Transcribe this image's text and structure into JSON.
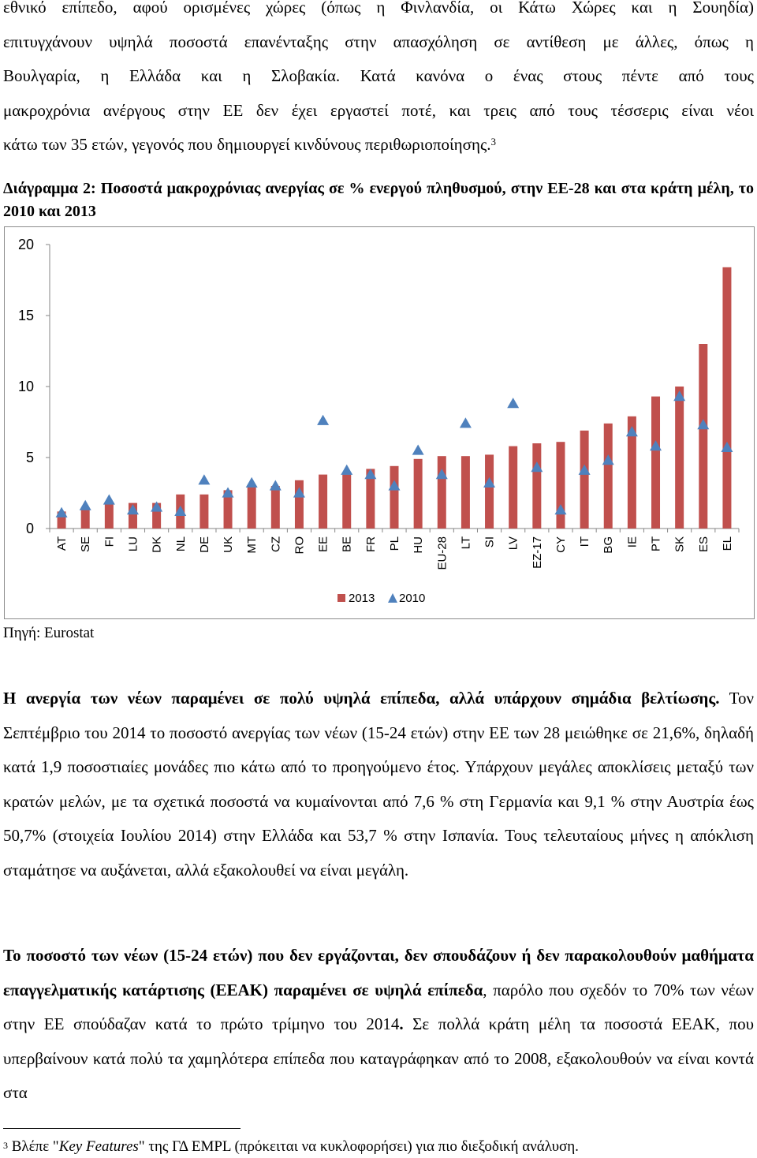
{
  "intro": {
    "line1": "εθνικό επίπεδο, αφού ορισμένες χώρες (όπως η Φινλανδία, οι Κάτω Χώρες και η Σουηδία)",
    "line2": "επιτυγχάνουν υψηλά ποσοστά επανένταξης στην απασχόληση σε αντίθεση με άλλες, όπως η",
    "line3": "Βουλγαρία, η Ελλάδα και η Σλοβακία. Κατά κανόνα ο ένας στους πέντε από τους",
    "line4": "μακροχρόνια ανέργους στην ΕΕ δεν έχει εργαστεί ποτέ, και τρεις από τους τέσσερις είναι νέοι",
    "line5": "κάτω των 35 ετών, γεγονός που δημιουργεί κινδύνους περιθωριοποίησης.",
    "footnote_ref": "3"
  },
  "caption": "Διάγραμμα 2: Ποσοστά μακροχρόνιας ανεργίας σε % ενεργού πληθυσμού, στην ΕΕ-28 και στα κράτη μέλη, το 2010 και 2013",
  "chart_data": {
    "type": "bar",
    "categories": [
      "AT",
      "SE",
      "FI",
      "LU",
      "DK",
      "NL",
      "DE",
      "UK",
      "MT",
      "CZ",
      "RO",
      "EE",
      "BE",
      "FR",
      "PL",
      "HU",
      "EU-28",
      "LT",
      "SI",
      "LV",
      "EZ-17",
      "CY",
      "IT",
      "BG",
      "IE",
      "PT",
      "SK",
      "ES",
      "EL"
    ],
    "series": [
      {
        "name": "2013",
        "kind": "bar",
        "color": "#c0504d",
        "values": [
          1.2,
          1.4,
          1.8,
          1.8,
          1.8,
          2.4,
          2.4,
          2.7,
          3.0,
          3.0,
          3.4,
          3.8,
          3.8,
          4.2,
          4.4,
          4.9,
          5.1,
          5.1,
          5.2,
          5.8,
          6.0,
          6.1,
          6.9,
          7.4,
          7.9,
          9.3,
          10.0,
          13.0,
          18.4
        ]
      },
      {
        "name": "2010",
        "kind": "marker",
        "marker": "triangle",
        "color": "#4f81bd",
        "values": [
          1.1,
          1.6,
          2.0,
          1.3,
          1.5,
          1.2,
          3.4,
          2.5,
          3.2,
          3.0,
          2.5,
          7.6,
          4.1,
          3.8,
          3.0,
          5.5,
          3.8,
          7.4,
          3.2,
          8.8,
          4.3,
          1.3,
          4.1,
          4.8,
          6.8,
          5.8,
          9.3,
          7.3,
          5.7
        ]
      }
    ],
    "ylim": [
      0,
      20
    ],
    "yticks": [
      0,
      5,
      10,
      15,
      20
    ],
    "grid": false,
    "legend_position": "bottom"
  },
  "source": "Πηγή: Eurostat",
  "youth": {
    "bold": "Η ανεργία των νέων παραμένει σε πολύ υψηλά επίπεδα, αλλά υπάρχουν σημάδια βελτίωσης.",
    "text": " Τον Σεπτέμβριο του 2014 το ποσοστό ανεργίας των νέων (15-24 ετών) στην ΕΕ των 28 μειώθηκε σε 21,6%, δηλαδή κατά 1,9 ποσοστιαίες μονάδες πιο κάτω από το προηγούμενο έτος. Υπάρχουν μεγάλες αποκλίσεις μεταξύ των κρατών μελών, με τα σχετικά ποσοστά να κυμαίνονται από 7,6 % στη Γερμανία και 9,1 % στην Αυστρία έως 50,7% (στοιχεία Ιουλίου 2014) στην Ελλάδα και 53,7 % στην Ισπανία. Τους τελευταίους μήνες η απόκλιση σταμάτησε να αυξάνεται, αλλά εξακολουθεί να είναι μεγάλη."
  },
  "neet": {
    "bold1": "Το ποσοστό των νέων (15-24 ετών) που δεν εργάζονται, δεν σπουδάζουν ή δεν παρακολουθούν μαθήματα επαγγελματικής κατάρτισης (ΕΕΑΚ) παραμένει σε υψηλά επίπεδα",
    "text1": ", παρόλο που σχεδόν το 70% των νέων στην ΕΕ σπούδαζαν κατά το πρώτο τρίμηνο του 2014",
    "bold2": ".",
    "text2": " Σε πολλά κράτη μέλη τα ποσοστά ΕΕΑΚ, που υπερβαίνουν κατά πολύ τα χαμηλότερα επίπεδα που καταγράφηκαν από το 2008, εξακολουθούν να είναι κοντά στα"
  },
  "footnote": {
    "num": "3",
    "pre": " Βλέπε \"",
    "italic": "Key Features",
    "post": "\" της ΓΔ EMPL (πρόκειται να κυκλοφορήσει) για πιο διεξοδική ανάλυση."
  }
}
